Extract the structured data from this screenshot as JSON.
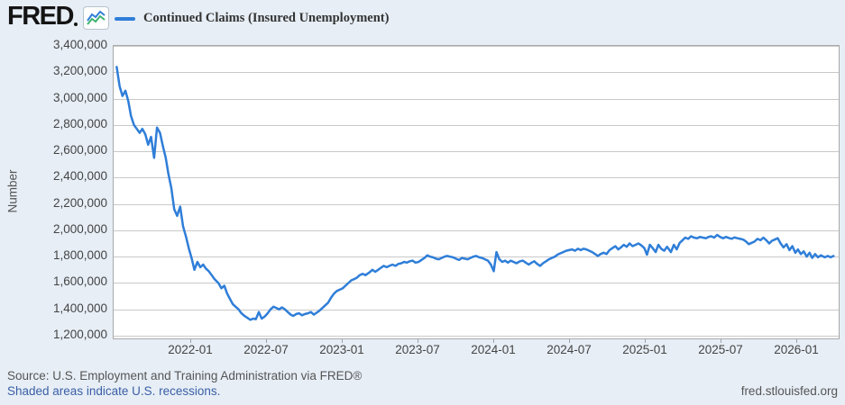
{
  "colors": {
    "background": "#e7eef6",
    "plot_background": "#ffffff",
    "grid": "#c9c9c9",
    "plot_border": "#a9a9a9",
    "line": "#2f7ed8",
    "icon_line2": "#3cb371",
    "text": "#444444",
    "muted_text": "#555555",
    "link": "#3a5fa5",
    "logo": "#141414"
  },
  "header": {
    "logo_text": "FRED",
    "legend_label": "Continued Claims (Insured Unemployment)"
  },
  "footer": {
    "source_line": "Source: U.S. Employment and Training Administration via FRED®",
    "recession_note": "Shaded areas indicate U.S. recessions.",
    "site_url": "fred.stlouisfed.org"
  },
  "chart_data": {
    "type": "line",
    "title": "Continued Claims (Insured Unemployment)",
    "ylabel": "Number",
    "xlabel": "",
    "grid": true,
    "legend_position": "top-left",
    "ylim": [
      1200000,
      3400000
    ],
    "y_ticks": [
      3400000,
      3200000,
      3000000,
      2800000,
      2600000,
      2400000,
      2200000,
      2000000,
      1800000,
      1600000,
      1400000,
      1200000
    ],
    "y_tick_labels": [
      "3,400,000",
      "3,200,000",
      "3,000,000",
      "2,800,000",
      "2,600,000",
      "2,400,000",
      "2,200,000",
      "2,000,000",
      "1,800,000",
      "1,600,000",
      "1,400,000",
      "1,200,000"
    ],
    "x_domain": [
      "2021-06-26",
      "2026-04-10"
    ],
    "x_ticks": [
      {
        "label": "2022-01",
        "date": "2022-01-01"
      },
      {
        "label": "2022-07",
        "date": "2022-07-01"
      },
      {
        "label": "2023-01",
        "date": "2023-01-01"
      },
      {
        "label": "2023-07",
        "date": "2023-07-01"
      },
      {
        "label": "2024-01",
        "date": "2024-01-01"
      },
      {
        "label": "2024-07",
        "date": "2024-07-01"
      },
      {
        "label": "2025-01",
        "date": "2025-01-01"
      },
      {
        "label": "2025-07",
        "date": "2025-07-01"
      },
      {
        "label": "2026-01",
        "date": "2026-01-01"
      }
    ],
    "series": [
      {
        "name": "Continued Claims (Insured Unemployment)",
        "points": [
          [
            "2021-07-03",
            3240000
          ],
          [
            "2021-07-10",
            3095000
          ],
          [
            "2021-07-17",
            3020000
          ],
          [
            "2021-07-24",
            3060000
          ],
          [
            "2021-07-31",
            2980000
          ],
          [
            "2021-08-07",
            2870000
          ],
          [
            "2021-08-14",
            2800000
          ],
          [
            "2021-08-21",
            2770000
          ],
          [
            "2021-08-28",
            2740000
          ],
          [
            "2021-09-04",
            2770000
          ],
          [
            "2021-09-11",
            2730000
          ],
          [
            "2021-09-18",
            2650000
          ],
          [
            "2021-09-25",
            2710000
          ],
          [
            "2021-10-02",
            2550000
          ],
          [
            "2021-10-09",
            2780000
          ],
          [
            "2021-10-16",
            2740000
          ],
          [
            "2021-10-23",
            2640000
          ],
          [
            "2021-10-30",
            2550000
          ],
          [
            "2021-11-06",
            2430000
          ],
          [
            "2021-11-13",
            2320000
          ],
          [
            "2021-11-20",
            2160000
          ],
          [
            "2021-11-27",
            2110000
          ],
          [
            "2021-12-04",
            2180000
          ],
          [
            "2021-12-11",
            2030000
          ],
          [
            "2021-12-18",
            1950000
          ],
          [
            "2021-12-25",
            1860000
          ],
          [
            "2022-01-01",
            1790000
          ],
          [
            "2022-01-08",
            1700000
          ],
          [
            "2022-01-15",
            1760000
          ],
          [
            "2022-01-22",
            1720000
          ],
          [
            "2022-01-29",
            1740000
          ],
          [
            "2022-02-05",
            1710000
          ],
          [
            "2022-02-12",
            1690000
          ],
          [
            "2022-02-19",
            1660000
          ],
          [
            "2022-02-26",
            1630000
          ],
          [
            "2022-03-05",
            1600000
          ],
          [
            "2022-03-12",
            1560000
          ],
          [
            "2022-03-19",
            1580000
          ],
          [
            "2022-03-26",
            1520000
          ],
          [
            "2022-04-02",
            1480000
          ],
          [
            "2022-04-09",
            1440000
          ],
          [
            "2022-04-16",
            1420000
          ],
          [
            "2022-04-23",
            1400000
          ],
          [
            "2022-04-30",
            1370000
          ],
          [
            "2022-05-07",
            1350000
          ],
          [
            "2022-05-14",
            1335000
          ],
          [
            "2022-05-21",
            1320000
          ],
          [
            "2022-05-28",
            1330000
          ],
          [
            "2022-06-04",
            1325000
          ],
          [
            "2022-06-11",
            1380000
          ],
          [
            "2022-06-18",
            1330000
          ],
          [
            "2022-06-25",
            1345000
          ],
          [
            "2022-07-02",
            1370000
          ],
          [
            "2022-07-09",
            1400000
          ],
          [
            "2022-07-16",
            1420000
          ],
          [
            "2022-07-23",
            1410000
          ],
          [
            "2022-07-30",
            1400000
          ],
          [
            "2022-08-06",
            1415000
          ],
          [
            "2022-08-13",
            1400000
          ],
          [
            "2022-08-20",
            1380000
          ],
          [
            "2022-08-27",
            1360000
          ],
          [
            "2022-09-03",
            1350000
          ],
          [
            "2022-09-10",
            1365000
          ],
          [
            "2022-09-17",
            1370000
          ],
          [
            "2022-09-24",
            1355000
          ],
          [
            "2022-10-01",
            1365000
          ],
          [
            "2022-10-08",
            1370000
          ],
          [
            "2022-10-15",
            1380000
          ],
          [
            "2022-10-22",
            1360000
          ],
          [
            "2022-10-29",
            1375000
          ],
          [
            "2022-11-05",
            1390000
          ],
          [
            "2022-11-12",
            1410000
          ],
          [
            "2022-11-19",
            1430000
          ],
          [
            "2022-11-26",
            1450000
          ],
          [
            "2022-12-03",
            1490000
          ],
          [
            "2022-12-10",
            1520000
          ],
          [
            "2022-12-17",
            1540000
          ],
          [
            "2022-12-24",
            1550000
          ],
          [
            "2022-12-31",
            1560000
          ],
          [
            "2023-01-07",
            1580000
          ],
          [
            "2023-01-14",
            1600000
          ],
          [
            "2023-01-21",
            1620000
          ],
          [
            "2023-01-28",
            1630000
          ],
          [
            "2023-02-04",
            1640000
          ],
          [
            "2023-02-11",
            1660000
          ],
          [
            "2023-02-18",
            1670000
          ],
          [
            "2023-02-25",
            1660000
          ],
          [
            "2023-03-04",
            1680000
          ],
          [
            "2023-03-11",
            1700000
          ],
          [
            "2023-03-18",
            1685000
          ],
          [
            "2023-03-25",
            1700000
          ],
          [
            "2023-04-01",
            1715000
          ],
          [
            "2023-04-08",
            1730000
          ],
          [
            "2023-04-15",
            1720000
          ],
          [
            "2023-04-22",
            1730000
          ],
          [
            "2023-04-29",
            1740000
          ],
          [
            "2023-05-06",
            1730000
          ],
          [
            "2023-05-13",
            1745000
          ],
          [
            "2023-05-20",
            1750000
          ],
          [
            "2023-05-27",
            1760000
          ],
          [
            "2023-06-03",
            1755000
          ],
          [
            "2023-06-10",
            1765000
          ],
          [
            "2023-06-17",
            1770000
          ],
          [
            "2023-06-24",
            1755000
          ],
          [
            "2023-07-01",
            1760000
          ],
          [
            "2023-07-08",
            1775000
          ],
          [
            "2023-07-15",
            1790000
          ],
          [
            "2023-07-22",
            1810000
          ],
          [
            "2023-07-29",
            1800000
          ],
          [
            "2023-08-05",
            1795000
          ],
          [
            "2023-08-12",
            1785000
          ],
          [
            "2023-08-19",
            1780000
          ],
          [
            "2023-08-26",
            1790000
          ],
          [
            "2023-09-02",
            1800000
          ],
          [
            "2023-09-09",
            1805000
          ],
          [
            "2023-09-16",
            1800000
          ],
          [
            "2023-09-23",
            1795000
          ],
          [
            "2023-09-30",
            1785000
          ],
          [
            "2023-10-07",
            1775000
          ],
          [
            "2023-10-14",
            1790000
          ],
          [
            "2023-10-21",
            1785000
          ],
          [
            "2023-10-28",
            1780000
          ],
          [
            "2023-11-04",
            1790000
          ],
          [
            "2023-11-11",
            1800000
          ],
          [
            "2023-11-18",
            1805000
          ],
          [
            "2023-11-25",
            1795000
          ],
          [
            "2023-12-02",
            1790000
          ],
          [
            "2023-12-09",
            1780000
          ],
          [
            "2023-12-16",
            1770000
          ],
          [
            "2023-12-23",
            1740000
          ],
          [
            "2023-12-30",
            1690000
          ],
          [
            "2024-01-06",
            1835000
          ],
          [
            "2024-01-13",
            1780000
          ],
          [
            "2024-01-20",
            1760000
          ],
          [
            "2024-01-27",
            1770000
          ],
          [
            "2024-02-03",
            1755000
          ],
          [
            "2024-02-10",
            1770000
          ],
          [
            "2024-02-17",
            1760000
          ],
          [
            "2024-02-24",
            1750000
          ],
          [
            "2024-03-02",
            1765000
          ],
          [
            "2024-03-09",
            1770000
          ],
          [
            "2024-03-16",
            1755000
          ],
          [
            "2024-03-23",
            1740000
          ],
          [
            "2024-03-30",
            1755000
          ],
          [
            "2024-04-06",
            1765000
          ],
          [
            "2024-04-13",
            1745000
          ],
          [
            "2024-04-20",
            1730000
          ],
          [
            "2024-04-27",
            1750000
          ],
          [
            "2024-05-04",
            1765000
          ],
          [
            "2024-05-11",
            1780000
          ],
          [
            "2024-05-18",
            1790000
          ],
          [
            "2024-05-25",
            1800000
          ],
          [
            "2024-06-01",
            1815000
          ],
          [
            "2024-06-08",
            1825000
          ],
          [
            "2024-06-15",
            1835000
          ],
          [
            "2024-06-22",
            1845000
          ],
          [
            "2024-06-29",
            1850000
          ],
          [
            "2024-07-06",
            1855000
          ],
          [
            "2024-07-13",
            1845000
          ],
          [
            "2024-07-20",
            1860000
          ],
          [
            "2024-07-27",
            1850000
          ],
          [
            "2024-08-03",
            1860000
          ],
          [
            "2024-08-10",
            1855000
          ],
          [
            "2024-08-17",
            1845000
          ],
          [
            "2024-08-24",
            1835000
          ],
          [
            "2024-08-31",
            1820000
          ],
          [
            "2024-09-07",
            1805000
          ],
          [
            "2024-09-14",
            1820000
          ],
          [
            "2024-09-21",
            1830000
          ],
          [
            "2024-09-28",
            1820000
          ],
          [
            "2024-10-05",
            1850000
          ],
          [
            "2024-10-12",
            1865000
          ],
          [
            "2024-10-19",
            1880000
          ],
          [
            "2024-10-26",
            1855000
          ],
          [
            "2024-11-02",
            1870000
          ],
          [
            "2024-11-09",
            1890000
          ],
          [
            "2024-11-16",
            1875000
          ],
          [
            "2024-11-23",
            1900000
          ],
          [
            "2024-11-30",
            1880000
          ],
          [
            "2024-12-07",
            1890000
          ],
          [
            "2024-12-14",
            1900000
          ],
          [
            "2024-12-21",
            1885000
          ],
          [
            "2024-12-28",
            1865000
          ],
          [
            "2025-01-04",
            1815000
          ],
          [
            "2025-01-11",
            1890000
          ],
          [
            "2025-01-18",
            1865000
          ],
          [
            "2025-01-25",
            1835000
          ],
          [
            "2025-02-01",
            1890000
          ],
          [
            "2025-02-08",
            1860000
          ],
          [
            "2025-02-15",
            1845000
          ],
          [
            "2025-02-22",
            1875000
          ],
          [
            "2025-03-01",
            1835000
          ],
          [
            "2025-03-08",
            1890000
          ],
          [
            "2025-03-15",
            1855000
          ],
          [
            "2025-03-22",
            1905000
          ],
          [
            "2025-03-29",
            1925000
          ],
          [
            "2025-04-05",
            1945000
          ],
          [
            "2025-04-12",
            1935000
          ],
          [
            "2025-04-19",
            1955000
          ],
          [
            "2025-04-26",
            1945000
          ],
          [
            "2025-05-03",
            1940000
          ],
          [
            "2025-05-10",
            1950000
          ],
          [
            "2025-05-17",
            1945000
          ],
          [
            "2025-05-24",
            1940000
          ],
          [
            "2025-05-31",
            1950000
          ],
          [
            "2025-06-07",
            1955000
          ],
          [
            "2025-06-14",
            1945000
          ],
          [
            "2025-06-21",
            1965000
          ],
          [
            "2025-06-28",
            1950000
          ],
          [
            "2025-07-05",
            1940000
          ],
          [
            "2025-07-12",
            1950000
          ],
          [
            "2025-07-19",
            1942000
          ],
          [
            "2025-07-26",
            1936000
          ],
          [
            "2025-08-02",
            1946000
          ],
          [
            "2025-08-09",
            1940000
          ],
          [
            "2025-08-16",
            1935000
          ],
          [
            "2025-08-23",
            1930000
          ],
          [
            "2025-08-30",
            1915000
          ],
          [
            "2025-09-06",
            1895000
          ],
          [
            "2025-09-13",
            1905000
          ],
          [
            "2025-09-20",
            1915000
          ],
          [
            "2025-09-27",
            1935000
          ],
          [
            "2025-10-04",
            1925000
          ],
          [
            "2025-10-11",
            1945000
          ],
          [
            "2025-10-18",
            1925000
          ],
          [
            "2025-10-25",
            1900000
          ],
          [
            "2025-11-01",
            1920000
          ],
          [
            "2025-11-08",
            1930000
          ],
          [
            "2025-11-15",
            1940000
          ],
          [
            "2025-11-22",
            1900000
          ],
          [
            "2025-11-29",
            1870000
          ],
          [
            "2025-12-06",
            1895000
          ],
          [
            "2025-12-13",
            1850000
          ],
          [
            "2025-12-20",
            1880000
          ],
          [
            "2025-12-27",
            1830000
          ],
          [
            "2026-01-03",
            1855000
          ],
          [
            "2026-01-10",
            1820000
          ],
          [
            "2026-01-17",
            1840000
          ],
          [
            "2026-01-24",
            1800000
          ],
          [
            "2026-01-31",
            1830000
          ],
          [
            "2026-02-07",
            1790000
          ],
          [
            "2026-02-14",
            1820000
          ],
          [
            "2026-02-21",
            1795000
          ],
          [
            "2026-02-28",
            1810000
          ],
          [
            "2026-03-07",
            1795000
          ],
          [
            "2026-03-14",
            1805000
          ],
          [
            "2026-03-21",
            1795000
          ],
          [
            "2026-03-28",
            1805000
          ]
        ]
      }
    ]
  }
}
